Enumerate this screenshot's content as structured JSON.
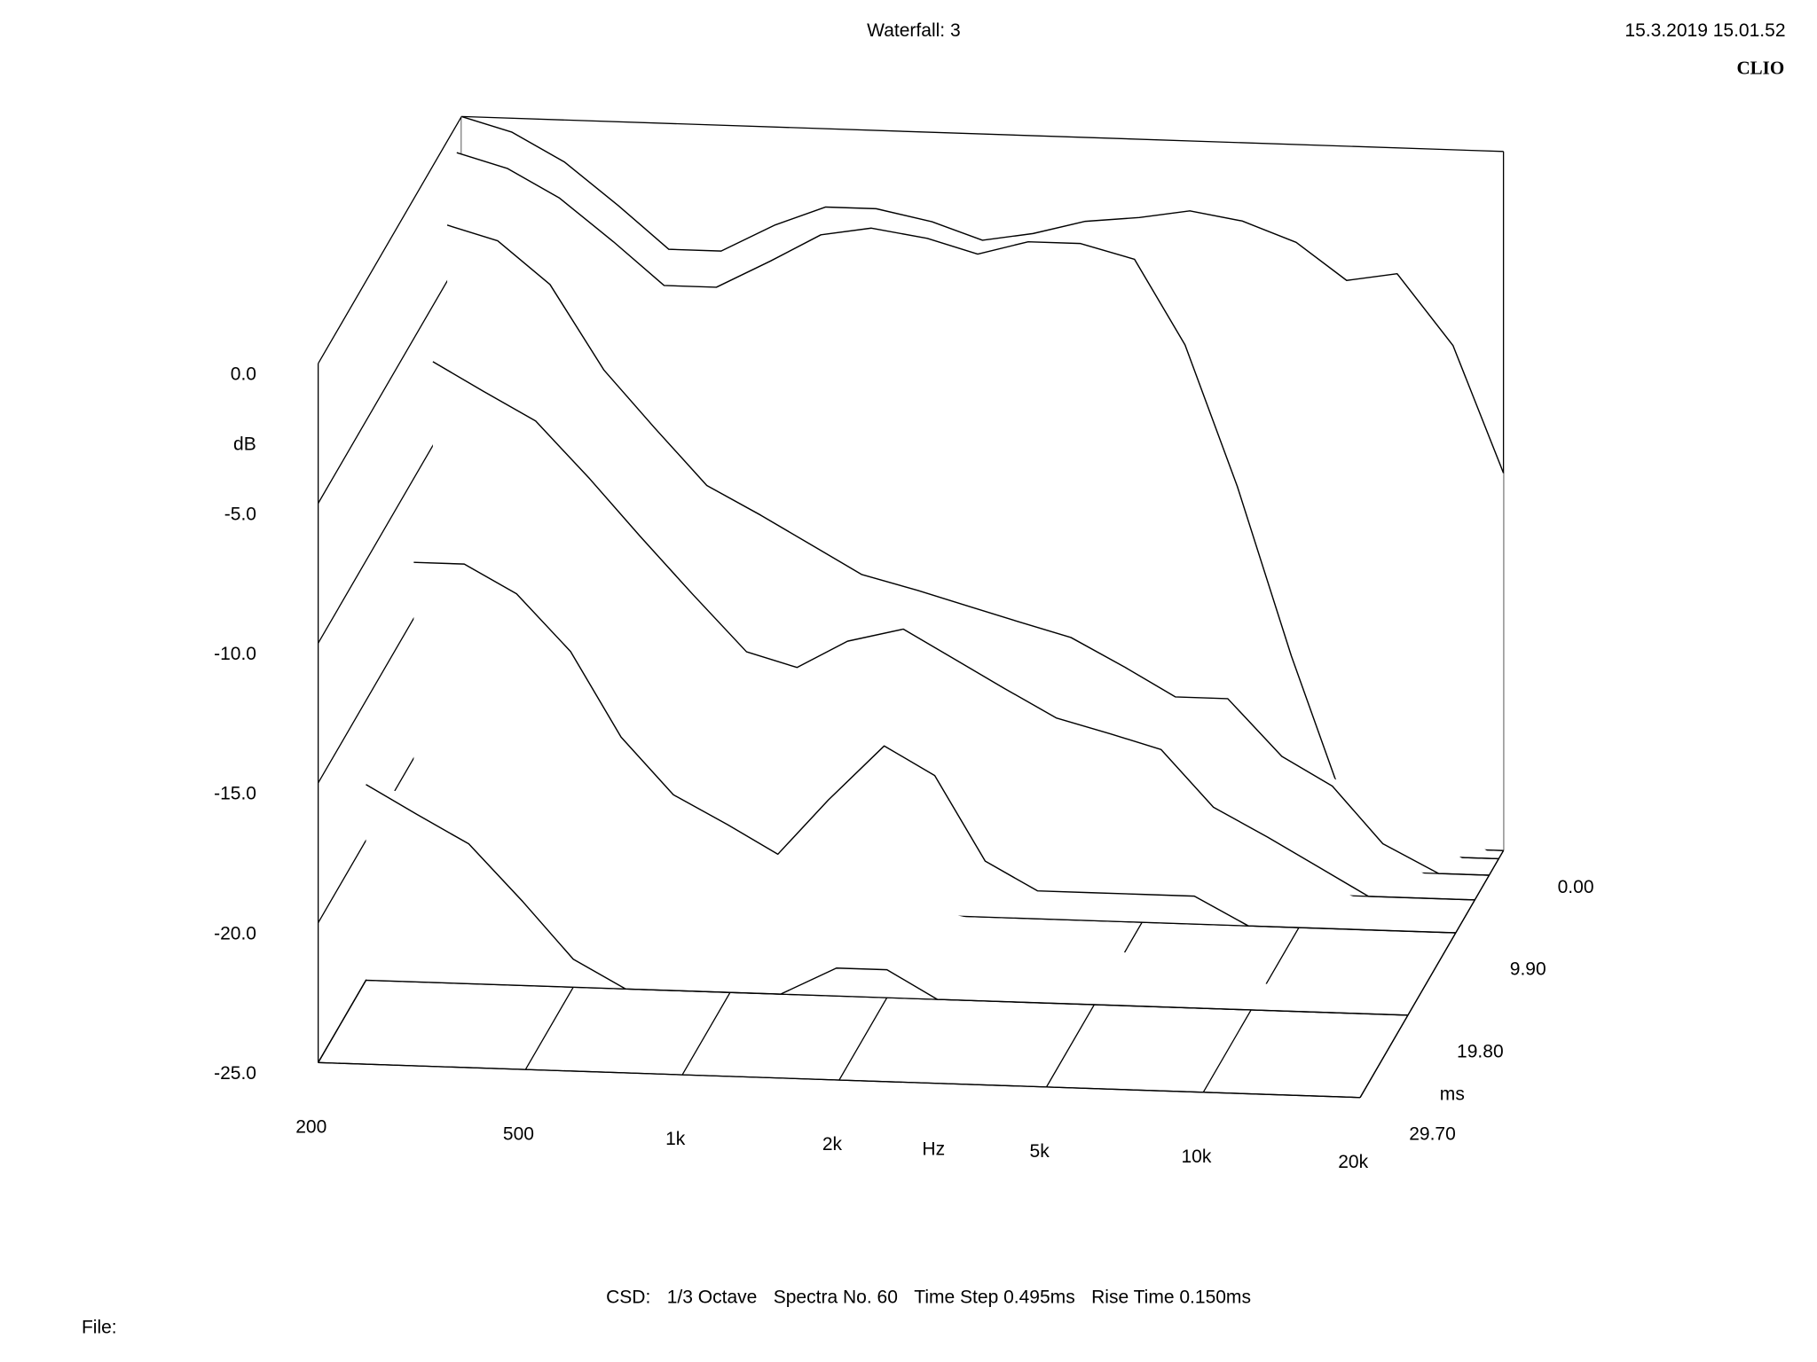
{
  "chart_data": {
    "type": "waterfall",
    "title": "Waterfall: 3",
    "timestamp": "15.3.2019 15.01.52",
    "brand": "CLIO",
    "xlabel": "Hz",
    "ylabel": "dB",
    "zlabel": "ms",
    "footer": [
      "CSD:",
      "1/3 Octave",
      "Spectra No. 60",
      "Time Step 0.495ms",
      "Rise Time 0.150ms"
    ],
    "file_label": "File:",
    "xscale": "log",
    "xlim": [
      200,
      20000
    ],
    "xticks": [
      200,
      500,
      {
        "value": 1000,
        "label": "1k"
      },
      {
        "value": 2000,
        "label": "2k"
      },
      {
        "value": 5000,
        "label": "5k"
      },
      {
        "value": 10000,
        "label": "10k"
      },
      {
        "value": 20000,
        "label": "20k"
      }
    ],
    "ylim": [
      -25,
      0
    ],
    "yticks": [
      {
        "value": 0,
        "label": "0.0"
      },
      {
        "value": -5,
        "label": "-5.0"
      },
      {
        "value": -10,
        "label": "-10.0"
      },
      {
        "value": -15,
        "label": "-15.0"
      },
      {
        "value": -20,
        "label": "-20.0"
      },
      {
        "value": -25,
        "label": "-25.0"
      }
    ],
    "zlim": [
      0,
      29.7
    ],
    "zticks": [
      {
        "value": 0,
        "label": "0.00"
      },
      {
        "value": 9.9,
        "label": "9.90"
      },
      {
        "value": 19.8,
        "label": "19.80"
      },
      {
        "value": 29.7,
        "label": "29.70"
      }
    ],
    "x": [
      200,
      250,
      315,
      400,
      500,
      630,
      800,
      1000,
      1250,
      1600,
      2000,
      2500,
      3150,
      4000,
      5000,
      6300,
      8000,
      10000,
      12500,
      16000,
      20000
    ],
    "series": [
      {
        "time": 0,
        "values": [
          0,
          -0.5,
          -1.5,
          -3,
          -4.5,
          -4.5,
          -3.5,
          -2.8,
          -2.8,
          -3.2,
          -3.8,
          -3.5,
          -3,
          -2.8,
          -2.5,
          -2.8,
          -3.5,
          -4.8,
          -4.5,
          -7,
          -11.5
        ]
      },
      {
        "time": 0.99,
        "values": [
          -1,
          -1.5,
          -2.5,
          -4,
          -5.5,
          -5.5,
          -4.5,
          -3.5,
          -3.2,
          -3.5,
          -4,
          -3.5,
          -3.5,
          -4,
          -7,
          -12,
          -18,
          -23,
          -25,
          -25,
          -25
        ]
      },
      {
        "time": 2.97,
        "values": [
          -3,
          -3.5,
          -5,
          -8,
          -10,
          -12,
          -13,
          -14,
          -15,
          -15.5,
          -16,
          -16.5,
          -17,
          -18,
          -19,
          -19,
          -21,
          -22,
          -24,
          -25,
          -25
        ]
      },
      {
        "time": 5.94,
        "values": [
          -7,
          -8,
          -9,
          -11,
          -13,
          -15,
          -17,
          -17.5,
          -16.5,
          -16,
          -17,
          -18,
          -19,
          -19.5,
          -20,
          -22,
          -23,
          -24,
          -25,
          -25,
          -25
        ]
      },
      {
        "time": 9.9,
        "values": [
          -13,
          -13,
          -14,
          -16,
          -19,
          -21,
          -22,
          -23,
          -21,
          -19,
          -20,
          -23,
          -24,
          -24,
          -24,
          -24,
          -25,
          -25,
          -25,
          -25,
          -25
        ]
      },
      {
        "time": 19.8,
        "values": [
          -18,
          -19,
          -20,
          -22,
          -24,
          -25,
          -25,
          -25,
          -25,
          -24,
          -24,
          -25,
          -25,
          -25,
          -25,
          -25,
          -25,
          -25,
          -25,
          -25,
          -25
        ]
      }
    ]
  }
}
